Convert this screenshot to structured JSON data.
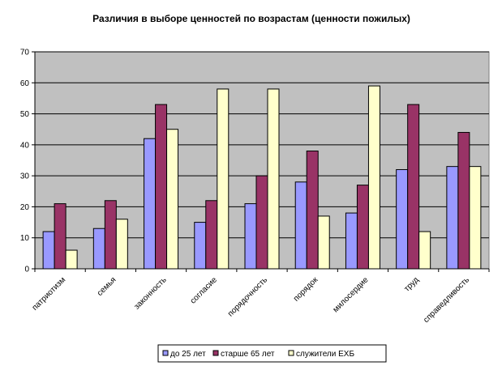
{
  "chart_data": {
    "type": "bar",
    "title": "Различия в выборе ценностей по возрастам (ценности пожилых)",
    "xlabel": "",
    "ylabel": "",
    "ylim": [
      0,
      70
    ],
    "yticks": [
      0,
      10,
      20,
      30,
      40,
      50,
      60,
      70
    ],
    "grid": true,
    "legend_position": "bottom",
    "categories": [
      "патриотизм",
      "семья",
      "законность",
      "согласие",
      "порядочность",
      "порядок",
      "милосердие",
      "труд",
      "справедливость"
    ],
    "series": [
      {
        "name": "до 25 лет",
        "color": "#9999FF",
        "values": [
          12,
          13,
          42,
          15,
          21,
          28,
          18,
          32,
          33
        ]
      },
      {
        "name": "старше 65 лет",
        "color": "#993366",
        "values": [
          21,
          22,
          53,
          22,
          30,
          38,
          27,
          53,
          44
        ]
      },
      {
        "name": "служители ЕХБ",
        "color": "#FFFFCC",
        "values": [
          6,
          16,
          45,
          58,
          58,
          17,
          59,
          12,
          33
        ]
      }
    ],
    "plot_background": "#C0C0C0"
  }
}
